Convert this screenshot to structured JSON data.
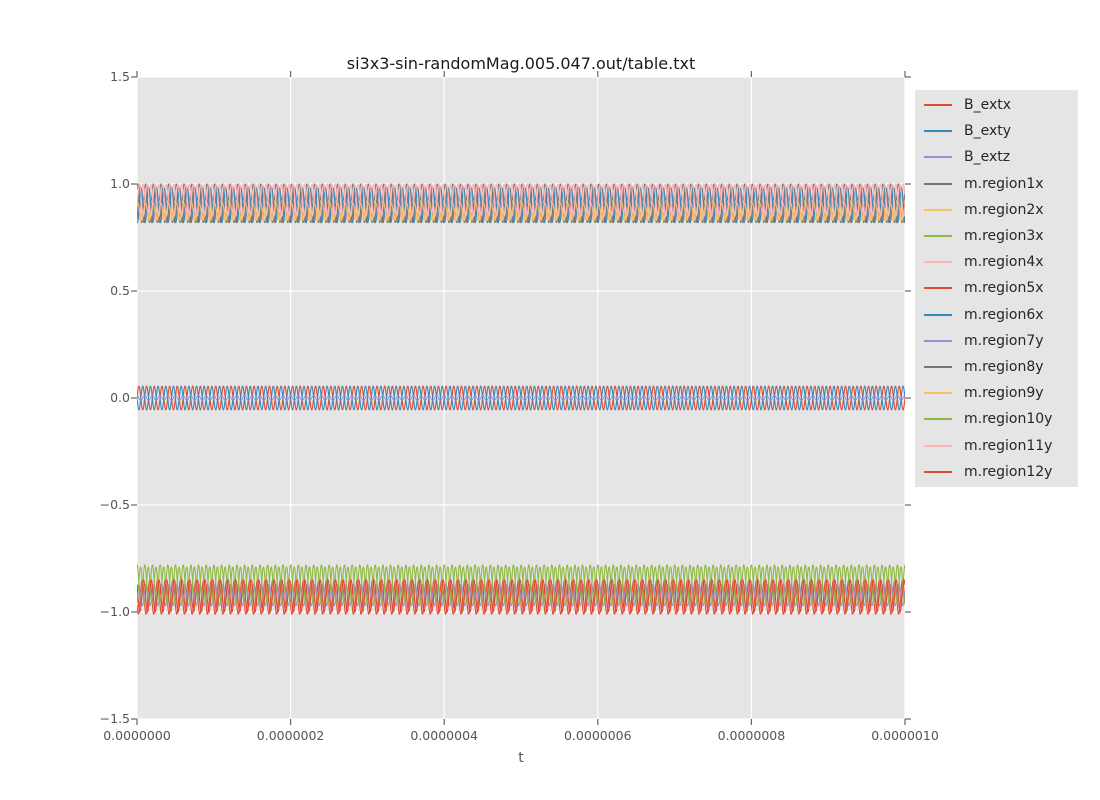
{
  "figure": {
    "background": "#ffffff"
  },
  "chart_data": {
    "type": "line",
    "title": "si3x3-sin-randomMag.005.047.out/table.txt",
    "xlabel": "t",
    "ylabel": "",
    "xlim": [
      0,
      1e-06
    ],
    "ylim": [
      -1.5,
      1.5
    ],
    "grid": true,
    "legend_position": "right",
    "xticks": {
      "values": [
        0,
        2e-07,
        4e-07,
        6e-07,
        8e-07,
        1e-06
      ],
      "labels": [
        "0.0000000",
        "0.0000002",
        "0.0000004",
        "0.0000006",
        "0.0000008",
        "0.0000010"
      ]
    },
    "yticks": {
      "values": [
        1.5,
        1.0,
        0.5,
        0.0,
        -0.5,
        -1.0,
        -1.5
      ],
      "labels": [
        "1.5",
        "1.0",
        "0.5",
        "0.0",
        "−0.5",
        "−1.0",
        "−1.5"
      ]
    },
    "styles": {
      "plot_background": "#e5e5e5",
      "grid_color": "#ffffff",
      "tick_color": "#666666",
      "tick_label_color": "#555555",
      "title_color": "#1a1a1a",
      "legend_background": "#e5e5e5",
      "legend_text_color": "#262626"
    },
    "waveform_note": "each series is a dense sinusoid: y(t) = offset + amplitude*sin(2*pi*cycles*t/1e-6 + phase); three bands: ~+0.9 (magnetization x/y of regions 1,2,4,6,8,9,11), ~0.0 (external field B_ext, amplitude ~0.055), ~-0.9 (regions 3,5,7,10,12)",
    "series": [
      {
        "name": "B_extx",
        "color": "#e24a33",
        "offset": 0.0,
        "amplitude": 0.055,
        "cycles": 100,
        "phase": 0.0
      },
      {
        "name": "B_exty",
        "color": "#348abd",
        "offset": 0.0,
        "amplitude": 0.055,
        "cycles": 100,
        "phase": 3.1416
      },
      {
        "name": "B_extz",
        "color": "#988ed5",
        "offset": 0.0,
        "amplitude": 0.01,
        "cycles": 100,
        "phase": 1.5708
      },
      {
        "name": "m.region1x",
        "color": "#777777",
        "offset": 0.91,
        "amplitude": 0.09,
        "cycles": 100,
        "phase": 0.8
      },
      {
        "name": "m.region2x",
        "color": "#fbc15e",
        "offset": 0.875,
        "amplitude": 0.045,
        "cycles": 100,
        "phase": 2.1
      },
      {
        "name": "m.region3x",
        "color": "#8eba42",
        "offset": -0.87,
        "amplitude": 0.09,
        "cycles": 100,
        "phase": 1.5
      },
      {
        "name": "m.region4x",
        "color": "#ffb5b8",
        "offset": 0.92,
        "amplitude": 0.08,
        "cycles": 100,
        "phase": 2.8
      },
      {
        "name": "m.region5x",
        "color": "#e24a33",
        "offset": -0.93,
        "amplitude": 0.08,
        "cycles": 100,
        "phase": 3.6
      },
      {
        "name": "m.region6x",
        "color": "#348abd",
        "offset": 0.9,
        "amplitude": 0.08,
        "cycles": 100,
        "phase": 4.4
      },
      {
        "name": "m.region7y",
        "color": "#988ed5",
        "offset": -0.92,
        "amplitude": 0.05,
        "cycles": 100,
        "phase": 0.3
      },
      {
        "name": "m.region8y",
        "color": "#777777",
        "offset": 0.905,
        "amplitude": 0.085,
        "cycles": 100,
        "phase": 5.3
      },
      {
        "name": "m.region9y",
        "color": "#fbc15e",
        "offset": 0.87,
        "amplitude": 0.04,
        "cycles": 100,
        "phase": 0.9
      },
      {
        "name": "m.region10y",
        "color": "#8eba42",
        "offset": -0.875,
        "amplitude": 0.085,
        "cycles": 100,
        "phase": 4.9
      },
      {
        "name": "m.region11y",
        "color": "#ffb5b8",
        "offset": 0.925,
        "amplitude": 0.075,
        "cycles": 100,
        "phase": 5.8
      },
      {
        "name": "m.region12y",
        "color": "#e24a33",
        "offset": -0.925,
        "amplitude": 0.075,
        "cycles": 100,
        "phase": 2.4
      }
    ]
  }
}
